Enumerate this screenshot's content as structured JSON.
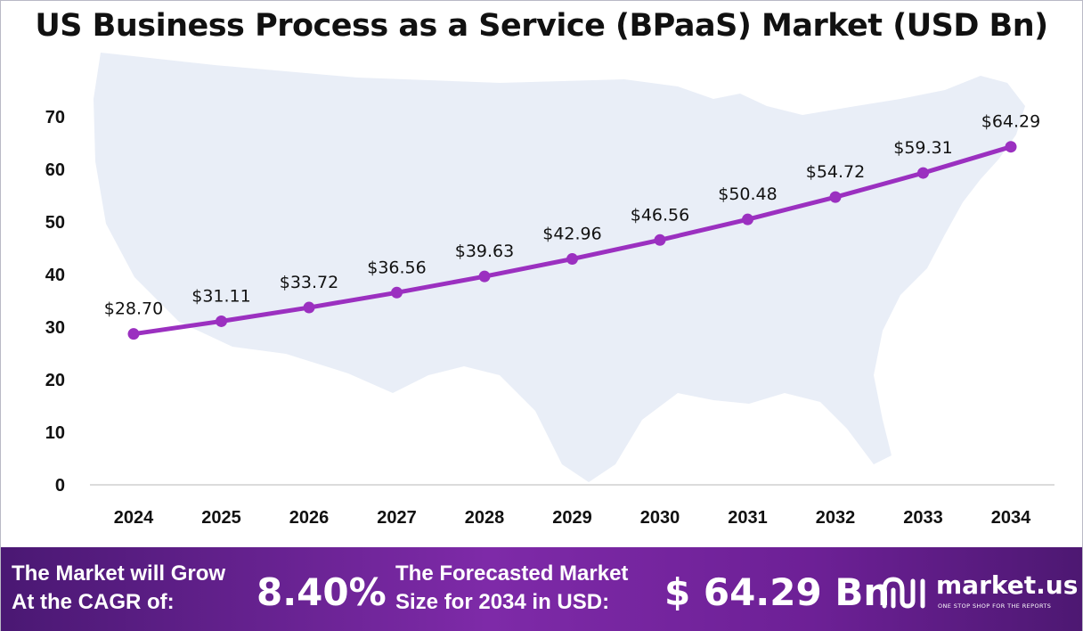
{
  "chart_data": {
    "type": "line",
    "title": "US Business Process as a Service (BPaaS) Market (USD Bn)",
    "categories": [
      "2024",
      "2025",
      "2026",
      "2027",
      "2028",
      "2029",
      "2030",
      "2031",
      "2032",
      "2033",
      "2034"
    ],
    "values": [
      28.7,
      31.11,
      33.72,
      36.56,
      39.63,
      42.96,
      46.56,
      50.48,
      54.72,
      59.31,
      64.29
    ],
    "data_labels": [
      "$28.70",
      "$31.11",
      "$33.72",
      "$36.56",
      "$39.63",
      "$42.96",
      "$46.56",
      "$50.48",
      "$54.72",
      "$59.31",
      "$64.29"
    ],
    "yticks": [
      0,
      10,
      20,
      30,
      40,
      50,
      60,
      70
    ],
    "ylim": [
      0,
      70
    ],
    "xlabel": "",
    "ylabel": "",
    "grid": false,
    "line_color": "#9b30c0",
    "background_shape": "us-map-silhouette"
  },
  "footer": {
    "cagr_label_line1": "The Market will Grow",
    "cagr_label_line2": "At the CAGR of:",
    "cagr_value": "8.40%",
    "forecast_label_line1": "The Forecasted Market",
    "forecast_label_line2": "Size for 2034 in USD:",
    "forecast_value": "$ 64.29 Bn"
  },
  "brand": {
    "name": "market.us",
    "tagline": "ONE STOP SHOP FOR THE REPORTS",
    "logo_icon": "market-us-logo-icon"
  },
  "colors": {
    "footer_start": "#4a1873",
    "footer_mid": "#7e2aa8",
    "line": "#9b30c0",
    "map": "#e9eef7"
  }
}
